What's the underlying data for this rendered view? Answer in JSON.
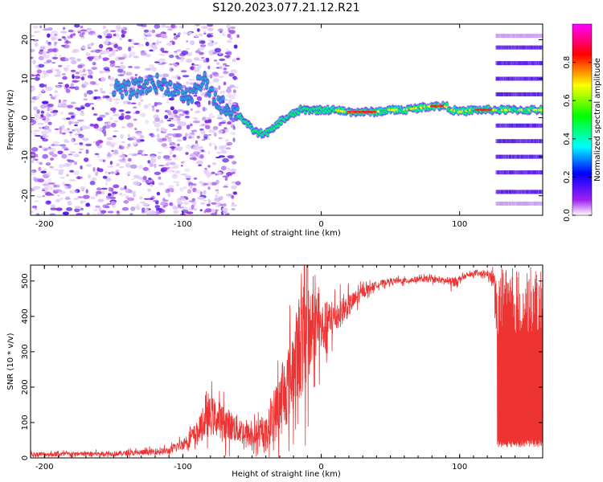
{
  "title": "S120.2023.077.21.12.R21",
  "chart_data": [
    {
      "type": "heatmap",
      "title": "S120.2023.077.21.12.R21",
      "xlabel": "Height of straight line (km)",
      "ylabel": "Frequency (Hz)",
      "xlim": [
        -210,
        160
      ],
      "ylim": [
        -25,
        24
      ],
      "xticks": [
        -200,
        -100,
        0,
        100
      ],
      "yticks": [
        -20,
        -10,
        0,
        10,
        20
      ],
      "colorbar": {
        "label": "Normalized spectral amplitude",
        "range": [
          0,
          1
        ],
        "ticks": [
          "0.0",
          "0.2",
          "0.4",
          "0.6",
          "0.8"
        ],
        "colors": [
          "#ffffff",
          "#a020f0",
          "#0000ff",
          "#00ffff",
          "#00ff00",
          "#ffff00",
          "#ff0000",
          "#ff00ff"
        ]
      },
      "ridge": {
        "x": [
          -150,
          -140,
          -130,
          -120,
          -110,
          -100,
          -95,
          -90,
          -85,
          -80,
          -75,
          -70,
          -65,
          -60,
          -55,
          -50,
          -45,
          -40,
          -35,
          -30,
          -25,
          -20,
          -15,
          -10,
          -5,
          0,
          10,
          20,
          30,
          40,
          50,
          60,
          70,
          80,
          90,
          95,
          100,
          110,
          120,
          125
        ],
        "freq": [
          8,
          7,
          8,
          9,
          8,
          6,
          5,
          8,
          10,
          6,
          4,
          3,
          2,
          1,
          -1,
          -3,
          -4,
          -4,
          -3,
          -1,
          0,
          1,
          2,
          2,
          2,
          2,
          2,
          1.5,
          1.5,
          1.5,
          2,
          2,
          2.5,
          3,
          3,
          2,
          1.5,
          2,
          2,
          2
        ]
      },
      "harmonic_lines_hz": [
        -22,
        -19,
        -14,
        -10,
        -6,
        -2,
        2,
        6,
        10,
        14,
        18,
        21
      ]
    },
    {
      "type": "line",
      "xlabel": "Height of straight line (km)",
      "ylabel": "SNR (10 * v/v)",
      "xlim": [
        -210,
        160
      ],
      "ylim": [
        0,
        545
      ],
      "xticks": [
        -200,
        -100,
        0,
        100
      ],
      "yticks": [
        0,
        100,
        200,
        300,
        400,
        500
      ],
      "color": "#ee3333",
      "series": [
        {
          "name": "SNR",
          "x": [
            -210,
            -150,
            -130,
            -110,
            -100,
            -90,
            -80,
            -70,
            -60,
            -50,
            -40,
            -30,
            -20,
            -15,
            -10,
            -5,
            0,
            10,
            20,
            30,
            40,
            50,
            60,
            70,
            80,
            90,
            95,
            100,
            105,
            110,
            120,
            125,
            130,
            140,
            150,
            160
          ],
          "values": [
            10,
            12,
            15,
            20,
            40,
            70,
            120,
            100,
            80,
            60,
            70,
            150,
            250,
            330,
            320,
            380,
            360,
            400,
            430,
            470,
            490,
            500,
            500,
            505,
            505,
            500,
            495,
            505,
            515,
            520,
            520,
            500,
            200,
            200,
            200,
            200
          ],
          "spread": [
            8,
            8,
            10,
            12,
            20,
            40,
            70,
            60,
            50,
            40,
            50,
            120,
            150,
            200,
            200,
            120,
            100,
            60,
            40,
            20,
            12,
            10,
            10,
            10,
            10,
            12,
            20,
            10,
            8,
            8,
            10,
            30,
            340,
            340,
            340,
            340
          ]
        }
      ]
    }
  ]
}
